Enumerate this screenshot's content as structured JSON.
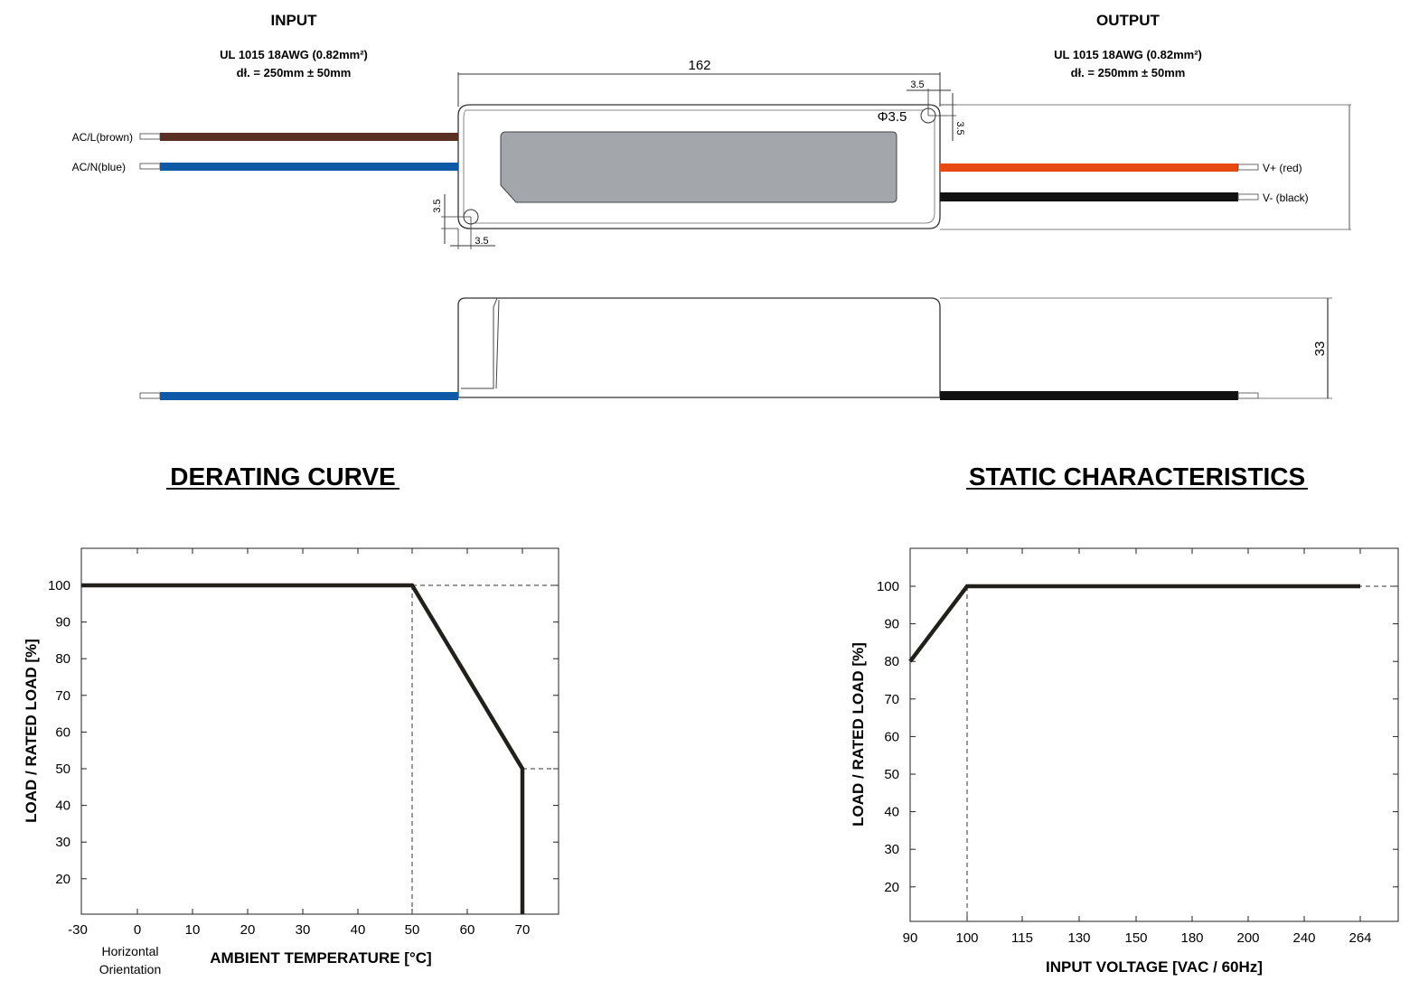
{
  "drawing": {
    "input": {
      "title": "INPUT",
      "cable_line1": "UL 1015 18AWG (0.82mm²)",
      "cable_line2": "dł. = 250mm ± 50mm",
      "wire_l_label": "AC/L(brown)",
      "wire_n_label": "AC/N(blue)"
    },
    "output": {
      "title": "OUTPUT",
      "cable_line1": "UL 1015 18AWG (0.82mm²)",
      "cable_line2": "dł. = 250mm ± 50mm",
      "wire_pos_label": "V+ (red)",
      "wire_neg_label": "V- (black)"
    },
    "dimensions": {
      "length": "162",
      "height": "33",
      "hole_diameter": "Φ3.5",
      "offset": "3.5"
    },
    "colors": {
      "brown_wire": "#5a2f24",
      "blue_wire": "#0e5aa7",
      "red_wire": "#e64a12",
      "black_wire": "#111111",
      "label_panel": "#a3a6ab"
    }
  },
  "chart_data": [
    {
      "type": "line",
      "title": "DERATING CURVE",
      "xlabel": "AMBIENT TEMPERATURE [°C]",
      "ylabel": "LOAD / RATED LOAD [%]",
      "note": "Horizontal Orientation",
      "x_ticks": [
        "-30",
        "0",
        "10",
        "20",
        "30",
        "40",
        "50",
        "60",
        "70"
      ],
      "y_ticks": [
        "20",
        "30",
        "40",
        "50",
        "60",
        "70",
        "80",
        "90",
        "100"
      ],
      "ylim": [
        10,
        100
      ],
      "grid": false,
      "series": [
        {
          "x": [
            "-30",
            "50",
            "70",
            "70"
          ],
          "y": [
            100,
            100,
            50,
            10
          ]
        }
      ]
    },
    {
      "type": "line",
      "title": "STATIC CHARACTERISTICS",
      "xlabel": "INPUT VOLTAGE [VAC / 60Hz]",
      "ylabel": "LOAD / RATED LOAD [%]",
      "x_ticks": [
        "90",
        "100",
        "115",
        "130",
        "150",
        "180",
        "200",
        "240",
        "264"
      ],
      "y_ticks": [
        "20",
        "30",
        "40",
        "50",
        "60",
        "70",
        "80",
        "90",
        "100"
      ],
      "ylim": [
        10,
        100
      ],
      "grid": false,
      "series": [
        {
          "x": [
            "90",
            "100",
            "264"
          ],
          "y": [
            80,
            100,
            100
          ]
        }
      ]
    }
  ]
}
